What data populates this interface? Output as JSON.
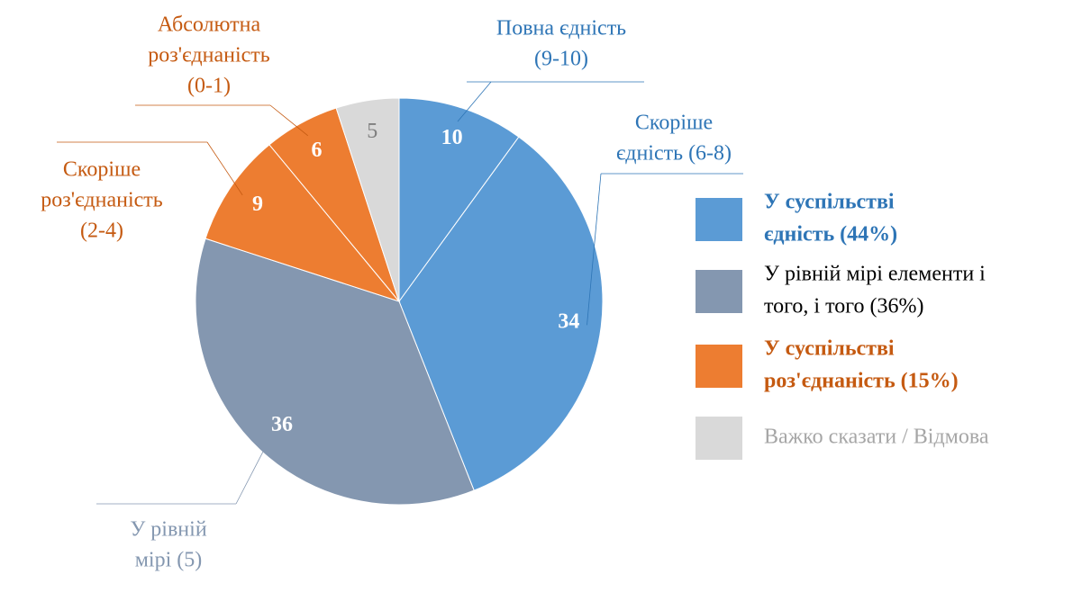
{
  "chart_data": {
    "type": "pie",
    "categories": [
      [
        "Повна єдність",
        "(9-10)"
      ],
      [
        "Скоріше",
        "єдність (6-8)"
      ],
      [
        "У рівній",
        "мірі (5)"
      ],
      [
        "Скоріше",
        "роз'єднаність",
        "(2-4)"
      ],
      [
        "Абсолютна",
        "роз'єднаність",
        "(0-1)"
      ],
      null
    ],
    "values": [
      10,
      34,
      36,
      9,
      6,
      5
    ],
    "colors": [
      "#5b9bd5",
      "#5b9bd5",
      "#8497b0",
      "#ed7d31",
      "#ed7d31",
      "#d9d9d9"
    ],
    "label_colors": [
      "#2e75b6",
      "#2e75b6",
      "#8497b0",
      "#c55a11",
      "#c55a11",
      "#7f7f7f"
    ],
    "legend": [
      {
        "name": [
          "У суспільстві",
          "єдність (44%)"
        ],
        "color": "#5b9bd5",
        "text_color": "#2e75b6",
        "bold": true
      },
      {
        "name": [
          "У рівній мірі елементи і",
          "того, і того (36%)"
        ],
        "color": "#8497b0",
        "text_color": "#000000",
        "bold": false
      },
      {
        "name": [
          "У суспільстві",
          "роз'єднаність (15%)"
        ],
        "color": "#ed7d31",
        "text_color": "#c55a11",
        "bold": true
      },
      {
        "name": [
          "Важко сказати / Відмова"
        ],
        "color": "#d9d9d9",
        "text_color": "#a6a6a6",
        "bold": false
      }
    ]
  }
}
